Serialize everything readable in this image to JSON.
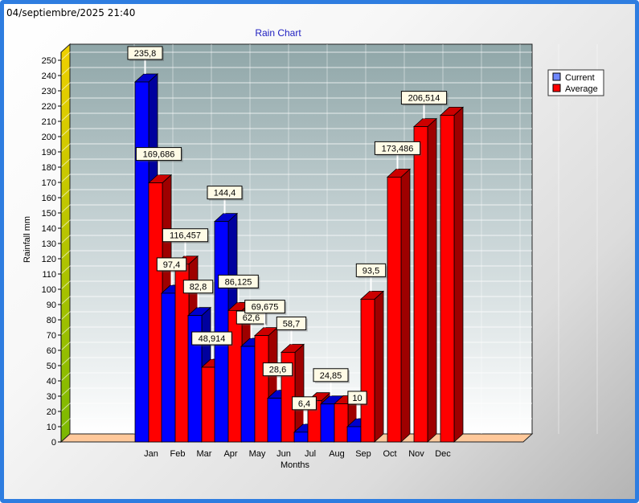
{
  "timestamp": "04/septiembre/2025 21:40",
  "chart_data": {
    "type": "bar",
    "title": "Rain Chart",
    "xlabel": "Months",
    "ylabel": "Rainfall mm",
    "ylim": [
      0,
      250
    ],
    "ytick_step": 10,
    "grid": true,
    "legend_position": "top-right",
    "categories": [
      "Jan",
      "Feb",
      "Mar",
      "Apr",
      "May",
      "Jun",
      "Jul",
      "Aug",
      "Sep",
      "Oct",
      "Nov",
      "Dec"
    ],
    "series": [
      {
        "name": "Current",
        "color": "#0000ff",
        "values": [
          235.8,
          97.4,
          82.8,
          144.4,
          62.6,
          28.6,
          6.4,
          24.85,
          10,
          null,
          null,
          null
        ],
        "labels": [
          "235,8",
          "97,4",
          "82,8",
          "144,4",
          "62,6",
          "28,6",
          "6,4",
          "24,85",
          "10",
          "",
          "",
          ""
        ]
      },
      {
        "name": "Average",
        "color": "#ff0000",
        "values": [
          169.686,
          116.457,
          48.914,
          86.125,
          69.675,
          58.7,
          27,
          25,
          93.5,
          173.486,
          206.514,
          214
        ],
        "labels": [
          "169,686",
          "116,457",
          "48,914",
          "86,125",
          "69,675",
          "58,7",
          "",
          "",
          "93,5",
          "173,486",
          "206,514",
          ""
        ]
      }
    ]
  }
}
